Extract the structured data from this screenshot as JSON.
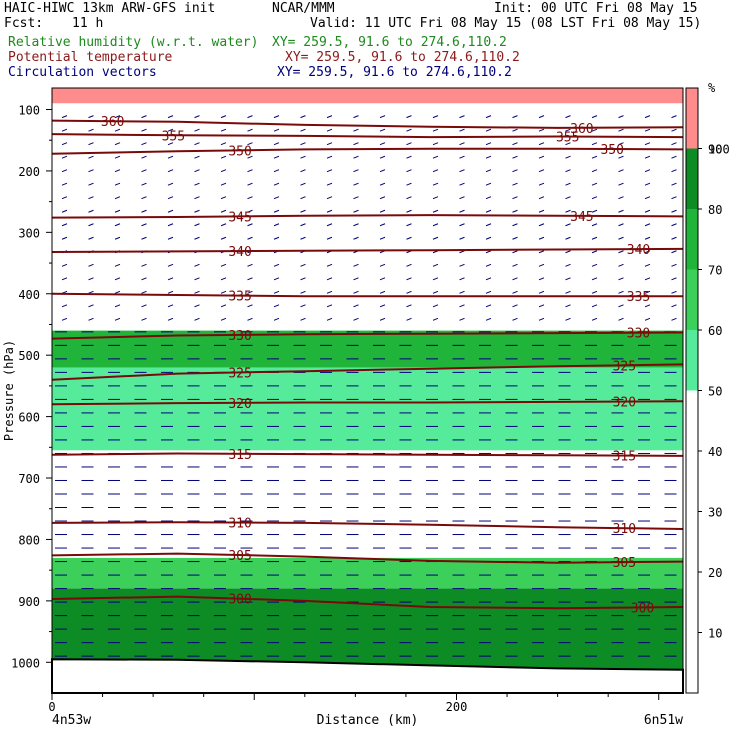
{
  "header": {
    "model": "HAIC-HIWC 13km ARW-GFS init",
    "org": "NCAR/MMM",
    "init": "Init: 00 UTC Fri 08 May 15",
    "fcst_label": "Fcst:",
    "fcst_value": "11 h",
    "valid": "Valid: 11 UTC Fri 08 May 15 (08 LST Fri 08 May 15)",
    "field1": "Relative humidity (w.r.t. water)",
    "field2": "Potential temperature",
    "field3": "Circulation vectors",
    "xy1": "XY= 259.5, 91.6 to 274.6,110.2",
    "xy2": "XY= 259.5, 91.6 to 274.6,110.2",
    "xy3": "XY= 259.5, 91.6 to 274.6,110.2"
  },
  "chart_data": {
    "type": "heatmap",
    "ylabel": "Pressure (hPa)",
    "xlabel": "Distance (km)",
    "x_ticks": [
      0,
      200
    ],
    "x_end_labels": [
      "4n53w",
      "6n51w"
    ],
    "xlim": [
      0,
      312
    ],
    "y_ticks": [
      100,
      200,
      300,
      400,
      500,
      600,
      700,
      800,
      900,
      1000
    ],
    "ylim": [
      1050,
      65
    ],
    "colorbar": {
      "unit": "%",
      "levels": [
        10,
        20,
        30,
        40,
        50,
        60,
        70,
        80,
        90,
        100
      ],
      "colors": [
        "#ffffff",
        "#ffffff",
        "#ffffff",
        "#ffffff",
        "#ffffff",
        "#55eb9b",
        "#3cd05a",
        "#21b43b",
        "#0d8b25",
        "#ff8c8c"
      ]
    },
    "rh_layers": [
      {
        "p_top": 65,
        "p_bottom": 90,
        "rh": 100
      },
      {
        "p_top": 90,
        "p_bottom": 460,
        "rh": 20
      },
      {
        "p_top": 460,
        "p_bottom": 520,
        "rh": 75
      },
      {
        "p_top": 520,
        "p_bottom": 655,
        "rh": 55
      },
      {
        "p_top": 655,
        "p_bottom": 830,
        "rh": 30
      },
      {
        "p_top": 830,
        "p_bottom": 880,
        "rh": 65
      },
      {
        "p_top": 880,
        "p_bottom": 1020,
        "rh": 85
      }
    ],
    "theta_contours": [
      {
        "label": "360",
        "p": [
          118,
          120,
          125,
          128,
          130,
          129
        ]
      },
      {
        "label": "355",
        "p": [
          140,
          142,
          143,
          145,
          144,
          145
        ]
      },
      {
        "label": "350",
        "p": [
          172,
          168,
          165,
          164,
          164,
          165
        ]
      },
      {
        "label": "345",
        "p": [
          276,
          275,
          273,
          272,
          273,
          274
        ]
      },
      {
        "label": "340",
        "p": [
          332,
          331,
          330,
          329,
          328,
          327
        ]
      },
      {
        "label": "335",
        "p": [
          400,
          402,
          404,
          404,
          404,
          404
        ]
      },
      {
        "label": "330",
        "p": [
          473,
          468,
          466,
          465,
          464,
          463
        ]
      },
      {
        "label": "325",
        "p": [
          540,
          530,
          526,
          522,
          518,
          515
        ]
      },
      {
        "label": "320",
        "p": [
          580,
          578,
          577,
          577,
          576,
          575
        ]
      },
      {
        "label": "315",
        "p": [
          662,
          660,
          661,
          662,
          663,
          664
        ]
      },
      {
        "label": "310",
        "p": [
          773,
          772,
          773,
          776,
          780,
          783
        ]
      },
      {
        "label": "305",
        "p": [
          826,
          823,
          828,
          835,
          838,
          836
        ]
      },
      {
        "label": "300",
        "p": [
          897,
          893,
          900,
          910,
          912,
          910
        ]
      }
    ],
    "theta_x": [
      0,
      62,
      125,
      187,
      250,
      312
    ],
    "theta_label_x": [
      [
        30,
        262
      ],
      [
        60,
        255
      ],
      [
        93,
        277
      ],
      [
        93,
        262
      ],
      [
        93,
        290
      ],
      [
        93,
        290
      ],
      [
        93,
        290
      ],
      [
        93,
        283
      ],
      [
        93,
        283
      ],
      [
        93,
        283
      ],
      [
        93,
        283
      ],
      [
        93,
        283
      ],
      [
        93,
        292
      ]
    ],
    "surface_p": [
      995,
      996,
      1000,
      1005,
      1010,
      1012
    ]
  }
}
